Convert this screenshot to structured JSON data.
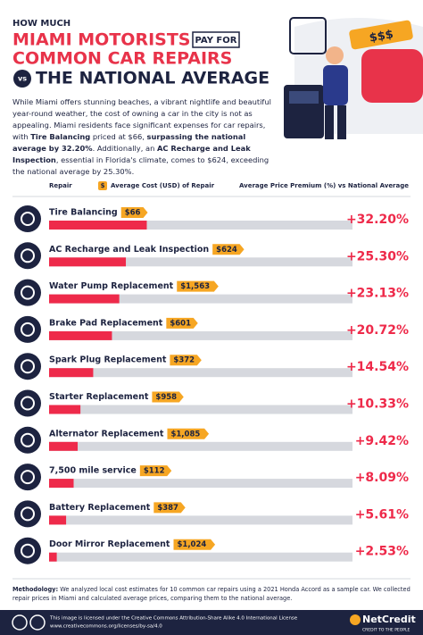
{
  "header": {
    "kicker": "HOW MUCH",
    "title_red_1": "MIAMI MOTORISTS",
    "title_tag": "PAY FOR",
    "title_red_2": "COMMON CAR REPAIRS",
    "vs": "vs",
    "title_navy": "THE NATIONAL AVERAGE"
  },
  "intro": [
    "While Miami offers stunning beaches, a vibrant nightlife and beautiful year-round weather, the cost of owning a car in the city is not as appealing. Miami residents face significant expenses for car repairs, with ",
    "Tire Balancing",
    " priced at $66, ",
    "surpassing the national average by 32.20%",
    ". Additionally, an ",
    "AC Recharge and Leak Inspection",
    ", essential in Florida's climate, comes to $624, exceeding the national average by 25.30%."
  ],
  "columns": {
    "repair": "Repair",
    "cost_icon": "$",
    "cost": "Average Cost (USD) of Repair",
    "premium": "Average Price Premium (%) vs National Average"
  },
  "chart_data": {
    "type": "bar",
    "orientation": "horizontal",
    "categories": [
      "Tire Balancing",
      "AC Recharge and Leak Inspection",
      "Water Pump Replacement",
      "Brake Pad Replacement",
      "Spark Plug Replacement",
      "Starter Replacement",
      "Alternator Replacement",
      "7,500 mile service",
      "Battery Replacement",
      "Door Mirror Replacement"
    ],
    "series": [
      {
        "name": "Average Price Premium (%) vs National Average",
        "color": "#ee2a4a",
        "values": [
          32.2,
          25.3,
          23.13,
          20.72,
          14.54,
          10.33,
          9.42,
          8.09,
          5.61,
          2.53
        ],
        "value_labels": [
          "+32.20%",
          "+25.30%",
          "+23.13%",
          "+20.72%",
          "+14.54%",
          "+10.33%",
          "+9.42%",
          "+8.09%",
          "+5.61%",
          "+2.53%"
        ]
      }
    ],
    "costs": {
      "color": "#f6a623",
      "values": [
        66,
        624,
        1563,
        601,
        372,
        958,
        1085,
        112,
        387,
        1024
      ],
      "value_labels": [
        "$66",
        "$624",
        "$1,563",
        "$601",
        "$372",
        "$958",
        "$1,085",
        "$112",
        "$387",
        "$1,024"
      ]
    },
    "xlim": [
      0,
      100
    ],
    "track_color": "#d6d8de"
  },
  "methodology": {
    "label": "Methodology:",
    "text": " We analyzed local cost estimates for 10 common car repairs using a 2021 Honda Accord as a sample car. We collected repair prices in Miami and calculated average prices, comparing them to the national average."
  },
  "footer": {
    "license": "This image is licensed under the Creative Commons Attribution-Share Alike 4.0 International License",
    "url": "www.creativecommons.org/licenses/by-sa/4.0",
    "brand": "NetCredit",
    "tagline": "CREDIT TO THE PEOPLE"
  }
}
